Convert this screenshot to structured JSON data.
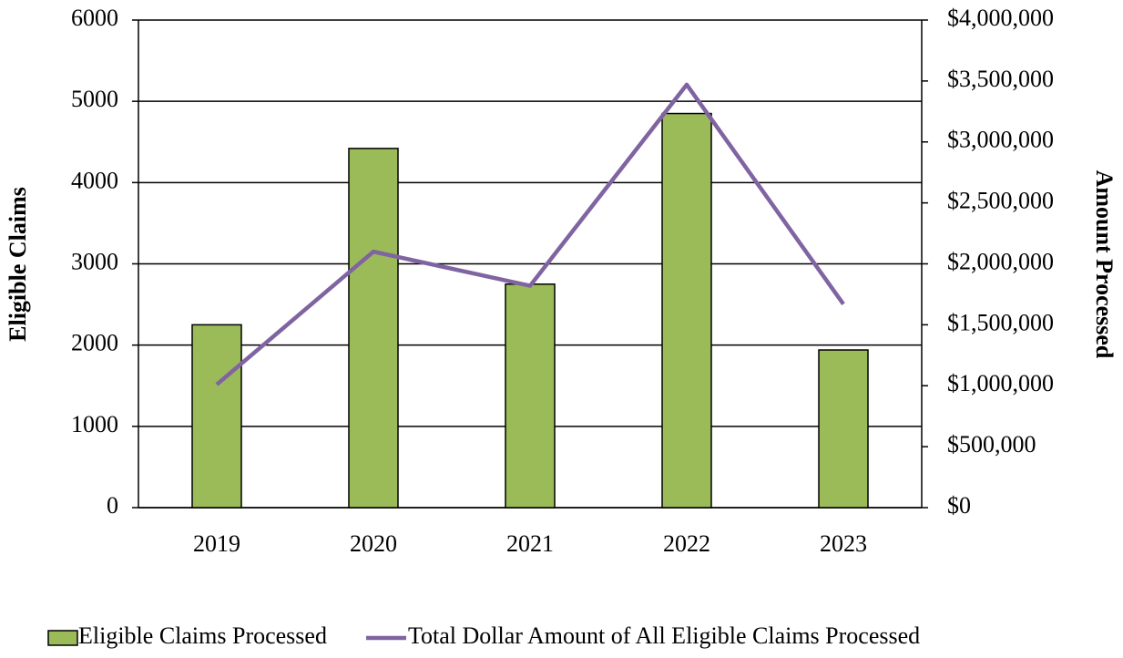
{
  "chart_data": {
    "type": "bar",
    "categories": [
      "2019",
      "2020",
      "2021",
      "2022",
      "2023"
    ],
    "y_label": "Eligible Claims",
    "y2_label": "Amount Processed",
    "ylim": [
      0,
      6000
    ],
    "yticks": [
      0,
      1000,
      2000,
      3000,
      4000,
      5000,
      6000
    ],
    "y2lim": [
      0,
      4000000
    ],
    "y2ticks": [
      {
        "value": 0,
        "label": "$0"
      },
      {
        "value": 500000,
        "label": "$500,000"
      },
      {
        "value": 1000000,
        "label": "$1,000,000"
      },
      {
        "value": 1500000,
        "label": "$1,500,000"
      },
      {
        "value": 2000000,
        "label": "$2,000,000"
      },
      {
        "value": 2500000,
        "label": "$2,500,000"
      },
      {
        "value": 3000000,
        "label": "$3,000,000"
      },
      {
        "value": 3500000,
        "label": "$3,500,000"
      },
      {
        "value": 4000000,
        "label": "$4,000,000"
      }
    ],
    "grid": true,
    "legend": "bottom",
    "series": [
      {
        "name": "Eligible Claims Processed",
        "type": "bar",
        "color": "#9bbb59",
        "values": [
          2250,
          4420,
          2750,
          4850,
          1940
        ]
      },
      {
        "name": "Total Dollar Amount of All Eligible Claims Processed",
        "type": "line",
        "axis": "y2",
        "color": "#8064a2",
        "values": [
          1010000,
          2100000,
          1820000,
          3470000,
          1670000
        ]
      }
    ]
  }
}
